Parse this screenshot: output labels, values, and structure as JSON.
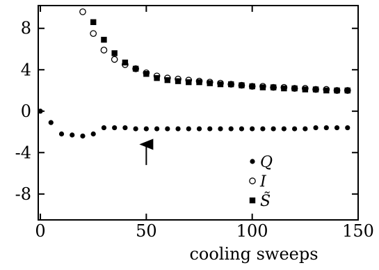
{
  "chart_data": {
    "type": "scatter",
    "title": "",
    "xlabel": "cooling sweeps",
    "ylabel": "",
    "xlim": [
      -1,
      150
    ],
    "ylim": [
      -10.5,
      10.2
    ],
    "x_ticks": [
      0,
      50,
      100,
      150
    ],
    "x_tick_labels": [
      "0",
      "50",
      "100",
      "150"
    ],
    "y_ticks": [
      8,
      4,
      0,
      -4,
      -8
    ],
    "y_tick_labels": [
      "8",
      "4",
      "0",
      "-4",
      "-8"
    ],
    "grid": false,
    "legend_position": "bottom-right",
    "arrow": {
      "x": 50,
      "y_tail": -5.2,
      "y_head": -2.8
    },
    "series": [
      {
        "name": "Q",
        "legend_text": "Q",
        "marker": "filled-circle",
        "color": "#000000",
        "x": [
          0,
          5,
          10,
          15,
          20,
          25,
          30,
          35,
          40,
          45,
          50,
          55,
          60,
          65,
          70,
          75,
          80,
          85,
          90,
          95,
          100,
          105,
          110,
          115,
          120,
          125,
          130,
          135,
          140,
          145
        ],
        "y": [
          0,
          -1.1,
          -2.2,
          -2.3,
          -2.4,
          -2.2,
          -1.6,
          -1.6,
          -1.6,
          -1.7,
          -1.7,
          -1.7,
          -1.7,
          -1.7,
          -1.7,
          -1.7,
          -1.7,
          -1.7,
          -1.7,
          -1.7,
          -1.7,
          -1.7,
          -1.7,
          -1.7,
          -1.7,
          -1.7,
          -1.6,
          -1.6,
          -1.6,
          -1.6
        ]
      },
      {
        "name": "I",
        "legend_text": "I",
        "marker": "open-circle",
        "color": "#000000",
        "x": [
          20,
          25,
          30,
          35,
          40,
          45,
          50,
          55,
          60,
          65,
          70,
          75,
          80,
          85,
          90,
          95,
          100,
          105,
          110,
          115,
          120,
          125,
          130,
          135,
          140,
          145
        ],
        "y": [
          9.6,
          7.5,
          5.9,
          5.0,
          4.5,
          4.1,
          3.7,
          3.4,
          3.2,
          3.1,
          3.0,
          2.9,
          2.8,
          2.7,
          2.6,
          2.5,
          2.4,
          2.4,
          2.3,
          2.3,
          2.2,
          2.2,
          2.1,
          2.1,
          2.0,
          2.0
        ]
      },
      {
        "name": "S~",
        "legend_text": "S̃",
        "marker": "filled-square",
        "color": "#000000",
        "x": [
          25,
          30,
          35,
          40,
          45,
          50,
          55,
          60,
          65,
          70,
          75,
          80,
          85,
          90,
          95,
          100,
          105,
          110,
          115,
          120,
          125,
          130,
          135,
          140,
          145
        ],
        "y": [
          8.6,
          6.9,
          5.6,
          4.7,
          4.1,
          3.6,
          3.2,
          3.0,
          2.9,
          2.8,
          2.8,
          2.7,
          2.6,
          2.6,
          2.5,
          2.4,
          2.3,
          2.3,
          2.2,
          2.2,
          2.1,
          2.1,
          2.0,
          2.0,
          2.0
        ]
      }
    ]
  }
}
